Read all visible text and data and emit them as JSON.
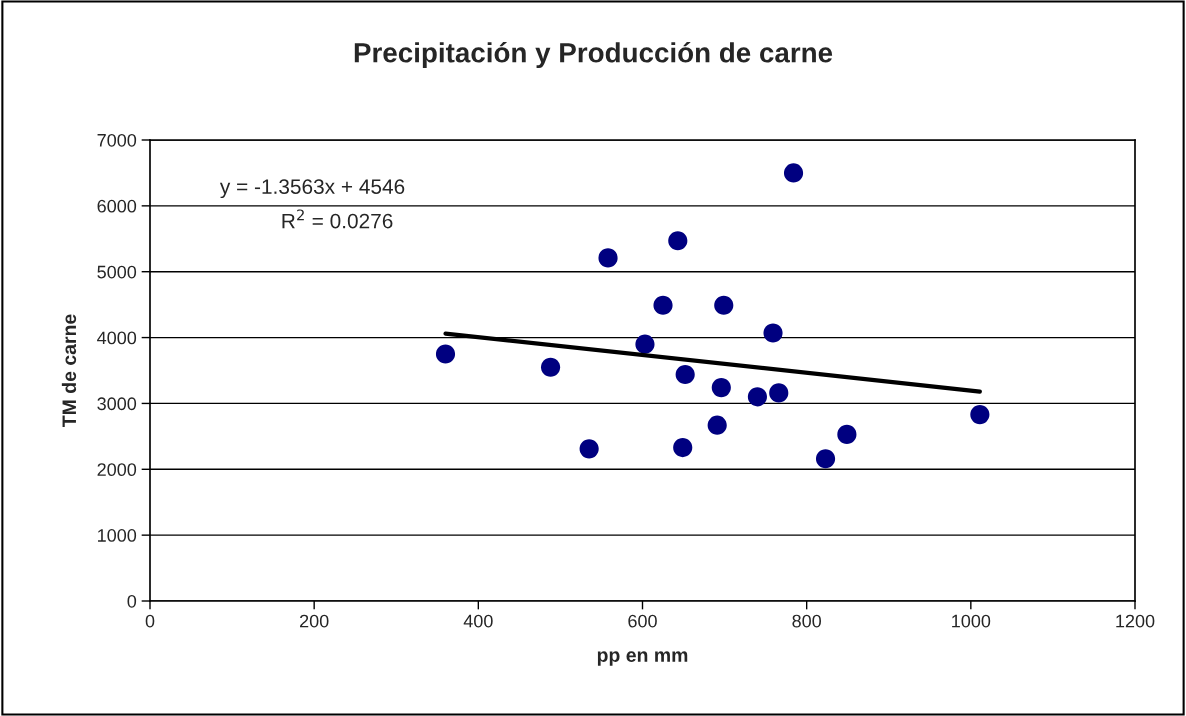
{
  "chart_data": {
    "type": "scatter",
    "title": "Precipitación y Producción de carne",
    "xlabel": "pp en mm",
    "ylabel": "TM de carne",
    "series": [
      {
        "color": "#000080",
        "marker": "circle",
        "x": [
          360,
          488,
          535,
          558,
          643,
          625,
          699,
          759,
          603,
          652,
          696,
          740,
          766,
          691,
          649,
          849,
          823,
          1011,
          784
        ],
        "values": [
          3750,
          3550,
          2310,
          5210,
          5470,
          4490,
          4490,
          4070,
          3900,
          3440,
          3240,
          3100,
          3160,
          2670,
          2330,
          2530,
          2160,
          2830,
          6500
        ]
      },
      {
        "type": "line",
        "color": "#000000",
        "marker": "none",
        "x": [
          360,
          1011
        ],
        "values": [
          4060,
          3180
        ]
      }
    ],
    "annotations": [
      "y = -1.3563x + 4546",
      "R$^{2}$ = 0.0276"
    ],
    "xlim": [
      0,
      1200
    ],
    "xticks": [
      0,
      200,
      400,
      600,
      800,
      1000,
      1200
    ],
    "ylim": [
      0,
      7000
    ],
    "yticks": [
      0,
      1000,
      2000,
      3000,
      4000,
      5000,
      6000,
      7000
    ],
    "grid": "y",
    "legend": false
  }
}
